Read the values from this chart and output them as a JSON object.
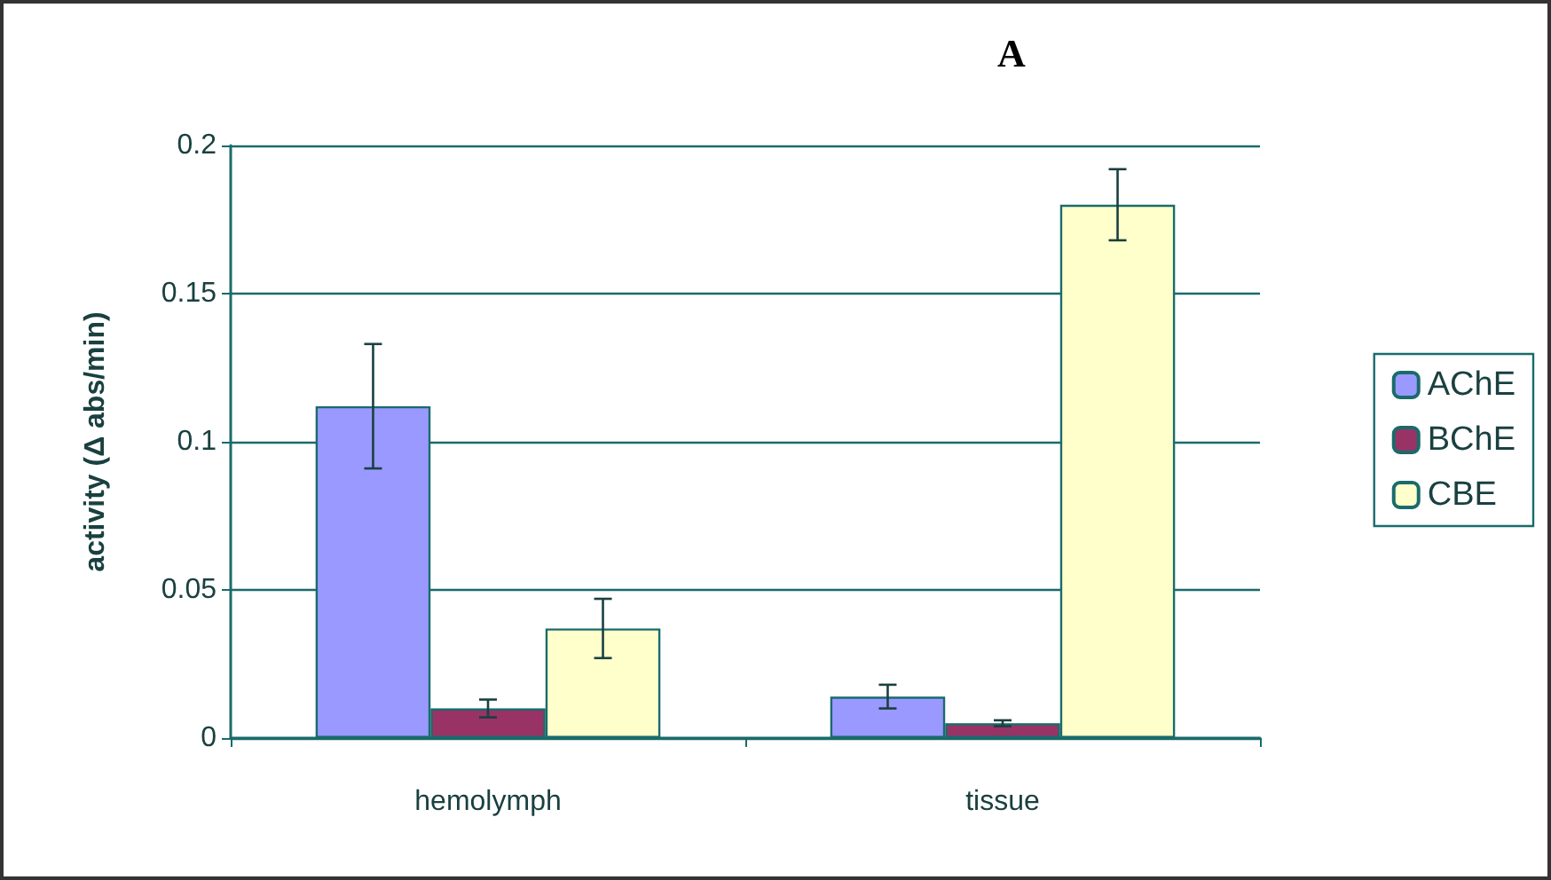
{
  "chart_data": {
    "type": "bar",
    "title": "A",
    "ylabel": "activity (Δ abs/min)",
    "categories": [
      "hemolymph",
      "tissue"
    ],
    "series": [
      {
        "name": "AChE",
        "color": "#9999ff",
        "values": [
          0.112,
          0.014
        ],
        "errors": [
          0.021,
          0.004
        ]
      },
      {
        "name": "BChE",
        "color": "#993366",
        "values": [
          0.01,
          0.005
        ],
        "errors": [
          0.003,
          0.001
        ]
      },
      {
        "name": "CBE",
        "color": "#ffffcc",
        "values": [
          0.037,
          0.18
        ],
        "errors": [
          0.01,
          0.012
        ]
      }
    ],
    "ylim": [
      0,
      0.2
    ],
    "yticks": [
      0,
      0.05,
      0.1,
      0.15,
      0.2
    ],
    "grid": "y",
    "legend": "right"
  }
}
